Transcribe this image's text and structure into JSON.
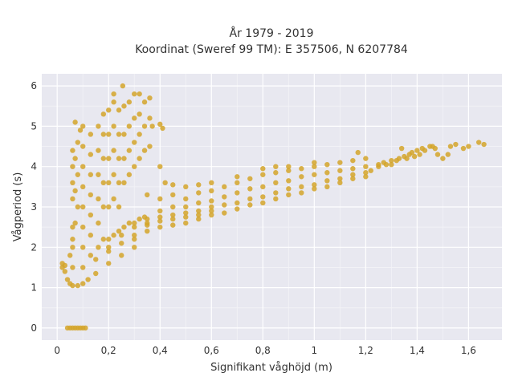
{
  "chart_data": {
    "type": "scatter",
    "title": [
      "År 1979 - 2019",
      "Koordinat (Sweref 99 TM): E 357506, N 6207784"
    ],
    "xlabel": "Signifikant våghöjd (m)",
    "ylabel": "Vågperiod (s)",
    "xlim": [
      -0.06,
      1.73
    ],
    "ylim": [
      -0.3,
      6.3
    ],
    "x_ticks": [
      0,
      0.2,
      0.4,
      0.6,
      0.8,
      1,
      1.2,
      1.4,
      1.6
    ],
    "x_tick_labels": [
      "0",
      "0,2",
      "0,4",
      "0,6",
      "0,8",
      "1",
      "1,2",
      "1,4",
      "1,6"
    ],
    "y_ticks": [
      0,
      1,
      2,
      3,
      4,
      5,
      6
    ],
    "y_tick_labels": [
      "0",
      "1",
      "2",
      "3",
      "4",
      "5",
      "6"
    ],
    "grid": true,
    "colors": {
      "marker": "#d4a52a",
      "plot_bg": "#e8e8f0",
      "grid": "#ffffff"
    },
    "series": [
      {
        "points": [
          [
            0.04,
            0
          ],
          [
            0.05,
            0
          ],
          [
            0.06,
            0
          ],
          [
            0.07,
            0
          ],
          [
            0.08,
            0
          ],
          [
            0.09,
            0
          ],
          [
            0.1,
            0
          ],
          [
            0.11,
            0
          ],
          [
            0.02,
            1.5
          ],
          [
            0.02,
            1.6
          ],
          [
            0.03,
            1.4
          ],
          [
            0.03,
            1.55
          ],
          [
            0.04,
            1.2
          ],
          [
            0.05,
            1.1
          ],
          [
            0.06,
            1.05
          ],
          [
            0.08,
            1.05
          ],
          [
            0.1,
            1.1
          ],
          [
            0.12,
            1.2
          ],
          [
            0.15,
            1.35
          ],
          [
            0.2,
            1.6
          ],
          [
            0.25,
            1.8
          ],
          [
            0.3,
            2.0
          ],
          [
            0.05,
            1.8
          ],
          [
            0.06,
            2.2
          ],
          [
            0.07,
            2.6
          ],
          [
            0.08,
            3.0
          ],
          [
            0.07,
            3.4
          ],
          [
            0.08,
            3.8
          ],
          [
            0.07,
            4.2
          ],
          [
            0.08,
            4.6
          ],
          [
            0.07,
            5.1
          ],
          [
            0.09,
            4.9
          ],
          [
            0.1,
            5.0
          ],
          [
            0.06,
            1.5
          ],
          [
            0.06,
            2.0
          ],
          [
            0.06,
            2.5
          ],
          [
            0.06,
            3.2
          ],
          [
            0.06,
            3.6
          ],
          [
            0.06,
            4.0
          ],
          [
            0.06,
            4.4
          ],
          [
            0.1,
            1.5
          ],
          [
            0.1,
            2.0
          ],
          [
            0.1,
            2.5
          ],
          [
            0.1,
            3.0
          ],
          [
            0.1,
            3.5
          ],
          [
            0.1,
            4.0
          ],
          [
            0.1,
            4.5
          ],
          [
            0.13,
            1.8
          ],
          [
            0.13,
            2.3
          ],
          [
            0.13,
            2.8
          ],
          [
            0.13,
            3.3
          ],
          [
            0.13,
            3.8
          ],
          [
            0.13,
            4.3
          ],
          [
            0.13,
            4.8
          ],
          [
            0.16,
            2.0
          ],
          [
            0.16,
            2.6
          ],
          [
            0.16,
            3.2
          ],
          [
            0.16,
            3.8
          ],
          [
            0.16,
            4.4
          ],
          [
            0.16,
            5.0
          ],
          [
            0.18,
            2.2
          ],
          [
            0.18,
            3.0
          ],
          [
            0.18,
            3.6
          ],
          [
            0.18,
            4.2
          ],
          [
            0.18,
            4.8
          ],
          [
            0.18,
            5.3
          ],
          [
            0.2,
            2.2
          ],
          [
            0.2,
            3.0
          ],
          [
            0.2,
            3.6
          ],
          [
            0.2,
            4.2
          ],
          [
            0.2,
            4.8
          ],
          [
            0.2,
            5.4
          ],
          [
            0.22,
            2.3
          ],
          [
            0.22,
            3.2
          ],
          [
            0.22,
            3.8
          ],
          [
            0.22,
            4.4
          ],
          [
            0.22,
            5.0
          ],
          [
            0.22,
            5.6
          ],
          [
            0.22,
            5.8
          ],
          [
            0.24,
            2.4
          ],
          [
            0.24,
            3.0
          ],
          [
            0.24,
            3.6
          ],
          [
            0.24,
            4.2
          ],
          [
            0.24,
            4.8
          ],
          [
            0.24,
            5.4
          ],
          [
            0.26,
            2.5
          ],
          [
            0.26,
            3.6
          ],
          [
            0.26,
            4.2
          ],
          [
            0.26,
            4.8
          ],
          [
            0.26,
            5.5
          ],
          [
            0.255,
            6.0
          ],
          [
            0.28,
            2.6
          ],
          [
            0.28,
            3.8
          ],
          [
            0.28,
            4.4
          ],
          [
            0.28,
            5.0
          ],
          [
            0.28,
            5.6
          ],
          [
            0.3,
            2.6
          ],
          [
            0.3,
            4.0
          ],
          [
            0.3,
            4.6
          ],
          [
            0.3,
            5.2
          ],
          [
            0.3,
            5.8
          ],
          [
            0.32,
            2.7
          ],
          [
            0.32,
            4.2
          ],
          [
            0.32,
            4.8
          ],
          [
            0.32,
            5.3
          ],
          [
            0.32,
            5.8
          ],
          [
            0.34,
            2.75
          ],
          [
            0.34,
            4.4
          ],
          [
            0.34,
            5.0
          ],
          [
            0.34,
            5.6
          ],
          [
            0.36,
            4.5
          ],
          [
            0.36,
            5.2
          ],
          [
            0.36,
            5.7
          ],
          [
            0.37,
            5.0
          ],
          [
            0.4,
            4.0
          ],
          [
            0.41,
            4.95
          ],
          [
            0.4,
            5.05
          ],
          [
            0.35,
            3.3
          ],
          [
            0.4,
            3.2
          ],
          [
            0.45,
            3.3
          ],
          [
            0.5,
            3.2
          ],
          [
            0.55,
            3.35
          ],
          [
            0.6,
            3.4
          ],
          [
            0.65,
            3.5
          ],
          [
            0.7,
            3.6
          ],
          [
            0.75,
            3.7
          ],
          [
            0.8,
            3.8
          ],
          [
            0.85,
            3.85
          ],
          [
            0.9,
            3.9
          ],
          [
            0.95,
            3.95
          ],
          [
            1.0,
            4.0
          ],
          [
            1.05,
            4.05
          ],
          [
            1.1,
            4.1
          ],
          [
            1.15,
            4.15
          ],
          [
            1.2,
            4.2
          ],
          [
            0.35,
            2.7
          ],
          [
            0.4,
            2.75
          ],
          [
            0.45,
            2.8
          ],
          [
            0.5,
            2.85
          ],
          [
            0.55,
            2.9
          ],
          [
            0.6,
            3.0
          ],
          [
            0.65,
            3.05
          ],
          [
            0.7,
            3.1
          ],
          [
            0.75,
            3.2
          ],
          [
            0.8,
            3.25
          ],
          [
            0.85,
            3.35
          ],
          [
            0.9,
            3.45
          ],
          [
            0.95,
            3.5
          ],
          [
            1.0,
            3.55
          ],
          [
            1.05,
            3.65
          ],
          [
            1.1,
            3.7
          ],
          [
            1.15,
            3.8
          ],
          [
            1.2,
            3.85
          ],
          [
            0.3,
            2.2
          ],
          [
            0.35,
            2.4
          ],
          [
            0.4,
            2.5
          ],
          [
            0.45,
            2.55
          ],
          [
            0.5,
            2.6
          ],
          [
            0.55,
            2.7
          ],
          [
            0.6,
            2.8
          ],
          [
            0.65,
            2.85
          ],
          [
            0.7,
            2.95
          ],
          [
            0.75,
            3.05
          ],
          [
            0.8,
            3.1
          ],
          [
            0.85,
            3.2
          ],
          [
            0.9,
            3.3
          ],
          [
            0.95,
            3.35
          ],
          [
            1.0,
            3.45
          ],
          [
            1.05,
            3.5
          ],
          [
            1.1,
            3.6
          ],
          [
            1.15,
            3.7
          ],
          [
            1.2,
            3.75
          ],
          [
            0.2,
            1.9
          ],
          [
            0.25,
            2.1
          ],
          [
            0.3,
            2.3
          ],
          [
            0.35,
            2.55
          ],
          [
            0.4,
            2.65
          ],
          [
            0.45,
            2.7
          ],
          [
            0.5,
            2.75
          ],
          [
            0.55,
            2.8
          ],
          [
            0.6,
            2.9
          ],
          [
            0.15,
            1.7
          ],
          [
            0.2,
            2.0
          ],
          [
            0.25,
            2.3
          ],
          [
            0.3,
            2.5
          ],
          [
            0.35,
            2.6
          ],
          [
            0.4,
            2.9
          ],
          [
            0.45,
            3.0
          ],
          [
            0.5,
            3.0
          ],
          [
            0.55,
            3.1
          ],
          [
            0.6,
            3.15
          ],
          [
            0.65,
            3.25
          ],
          [
            0.7,
            3.35
          ],
          [
            0.75,
            3.45
          ],
          [
            0.8,
            3.5
          ],
          [
            0.85,
            3.6
          ],
          [
            0.9,
            3.65
          ],
          [
            0.95,
            3.75
          ],
          [
            1.0,
            3.8
          ],
          [
            1.05,
            3.85
          ],
          [
            1.1,
            3.9
          ],
          [
            1.15,
            3.95
          ],
          [
            1.2,
            4.0
          ],
          [
            0.42,
            3.6
          ],
          [
            0.45,
            3.55
          ],
          [
            0.5,
            3.5
          ],
          [
            0.55,
            3.55
          ],
          [
            0.6,
            3.6
          ],
          [
            0.7,
            3.75
          ],
          [
            0.8,
            3.95
          ],
          [
            0.85,
            4.0
          ],
          [
            0.9,
            4.0
          ],
          [
            1.0,
            4.1
          ],
          [
            1.22,
            3.9
          ],
          [
            1.25,
            4.05
          ],
          [
            1.27,
            4.1
          ],
          [
            1.3,
            4.15
          ],
          [
            1.33,
            4.2
          ],
          [
            1.35,
            4.25
          ],
          [
            1.37,
            4.3
          ],
          [
            1.4,
            4.4
          ],
          [
            1.42,
            4.45
          ],
          [
            1.45,
            4.5
          ],
          [
            1.47,
            4.45
          ],
          [
            1.25,
            4.0
          ],
          [
            1.28,
            4.05
          ],
          [
            1.32,
            4.15
          ],
          [
            1.36,
            4.2
          ],
          [
            1.38,
            4.35
          ],
          [
            1.41,
            4.3
          ],
          [
            1.43,
            4.4
          ],
          [
            1.5,
            4.2
          ],
          [
            1.52,
            4.3
          ],
          [
            1.55,
            4.55
          ],
          [
            1.53,
            4.5
          ],
          [
            1.58,
            4.45
          ],
          [
            1.6,
            4.5
          ],
          [
            1.64,
            4.6
          ],
          [
            1.66,
            4.55
          ],
          [
            1.17,
            4.35
          ],
          [
            1.3,
            4.05
          ],
          [
            1.34,
            4.45
          ],
          [
            1.39,
            4.25
          ],
          [
            1.48,
            4.3
          ],
          [
            1.46,
            4.5
          ]
        ]
      }
    ]
  }
}
